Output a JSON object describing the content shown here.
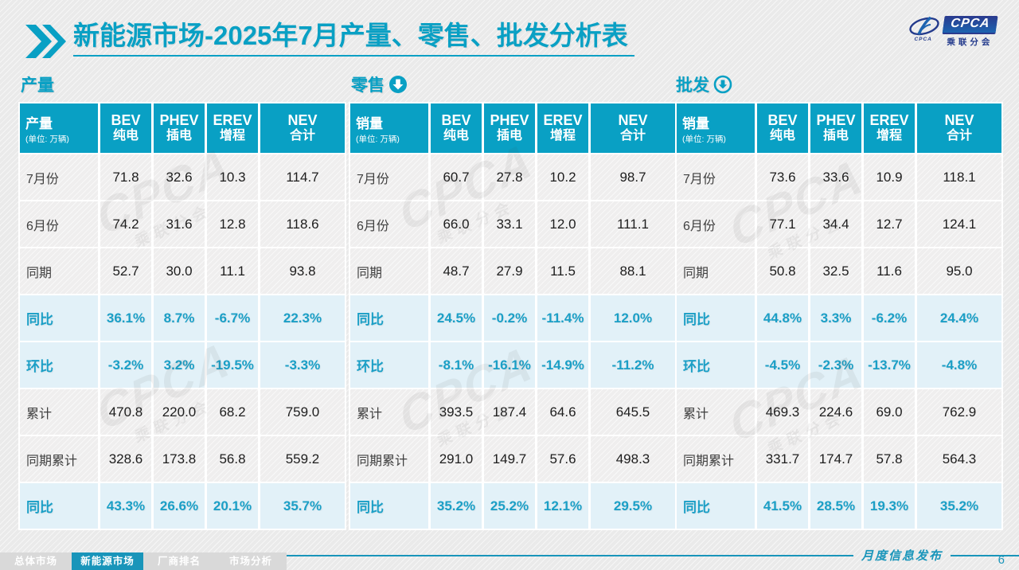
{
  "header": {
    "title_bold": "新能源市场",
    "title_rest": "-2025年7月产量、零售、批发分析表",
    "logo": {
      "name": "CPCA",
      "caption": "CPCA",
      "subtitle": "乘联分会"
    }
  },
  "colors": {
    "accent": "#09a0c4",
    "accent_text": "#1b9fc6",
    "row_highlight": "#e2f1f8",
    "row_gray": "#efeeee",
    "tab_active": "#1995ba",
    "tab_inactive": "#d9d9d9",
    "logo_navy": "#233a8c",
    "value_text": "#1d1d1d"
  },
  "watermark": {
    "line1": "CPCA",
    "line2": "乘联分会"
  },
  "chart_data": [
    {
      "type": "table",
      "name": "production",
      "section_label": "产量",
      "section_icon": "none",
      "corner_title": "产量",
      "corner_unit": "(单位: 万辆)",
      "columns": [
        [
          "BEV",
          "纯电"
        ],
        [
          "PHEV",
          "插电"
        ],
        [
          "EREV",
          "增程"
        ],
        [
          "NEV",
          "合计"
        ]
      ],
      "rows": [
        {
          "label": "7月份",
          "kind": "data",
          "cells": [
            "71.8",
            "32.6",
            "10.3",
            "114.7"
          ]
        },
        {
          "label": "6月份",
          "kind": "data",
          "cells": [
            "74.2",
            "31.6",
            "12.8",
            "118.6"
          ]
        },
        {
          "label": "同期",
          "kind": "data",
          "cells": [
            "52.7",
            "30.0",
            "11.1",
            "93.8"
          ]
        },
        {
          "label": "同比",
          "kind": "percent",
          "cells": [
            "36.1%",
            "8.7%",
            "-6.7%",
            "22.3%"
          ]
        },
        {
          "label": "环比",
          "kind": "percent",
          "cells": [
            "-3.2%",
            "3.2%",
            "-19.5%",
            "-3.3%"
          ]
        },
        {
          "label": "累计",
          "kind": "data",
          "cells": [
            "470.8",
            "220.0",
            "68.2",
            "759.0"
          ]
        },
        {
          "label": "同期累计",
          "kind": "data",
          "cells": [
            "328.6",
            "173.8",
            "56.8",
            "559.2"
          ]
        },
        {
          "label": "同比",
          "kind": "percent",
          "cells": [
            "43.3%",
            "26.6%",
            "20.1%",
            "35.7%"
          ]
        }
      ]
    },
    {
      "type": "table",
      "name": "retail",
      "section_label": "零售",
      "section_icon": "down-circle-filled",
      "corner_title": "销量",
      "corner_unit": "(单位: 万辆)",
      "columns": [
        [
          "BEV",
          "纯电"
        ],
        [
          "PHEV",
          "插电"
        ],
        [
          "EREV",
          "增程"
        ],
        [
          "NEV",
          "合计"
        ]
      ],
      "rows": [
        {
          "label": "7月份",
          "kind": "data",
          "cells": [
            "60.7",
            "27.8",
            "10.2",
            "98.7"
          ]
        },
        {
          "label": "6月份",
          "kind": "data",
          "cells": [
            "66.0",
            "33.1",
            "12.0",
            "111.1"
          ]
        },
        {
          "label": "同期",
          "kind": "data",
          "cells": [
            "48.7",
            "27.9",
            "11.5",
            "88.1"
          ]
        },
        {
          "label": "同比",
          "kind": "percent",
          "cells": [
            "24.5%",
            "-0.2%",
            "-11.4%",
            "12.0%"
          ]
        },
        {
          "label": "环比",
          "kind": "percent",
          "cells": [
            "-8.1%",
            "-16.1%",
            "-14.9%",
            "-11.2%"
          ]
        },
        {
          "label": "累计",
          "kind": "data",
          "cells": [
            "393.5",
            "187.4",
            "64.6",
            "645.5"
          ]
        },
        {
          "label": "同期累计",
          "kind": "data",
          "cells": [
            "291.0",
            "149.7",
            "57.6",
            "498.3"
          ]
        },
        {
          "label": "同比",
          "kind": "percent",
          "cells": [
            "35.2%",
            "25.2%",
            "12.1%",
            "29.5%"
          ]
        }
      ]
    },
    {
      "type": "table",
      "name": "wholesale",
      "section_label": "批发",
      "section_icon": "down-circle-outline",
      "corner_title": "销量",
      "corner_unit": "(单位: 万辆)",
      "columns": [
        [
          "BEV",
          "纯电"
        ],
        [
          "PHEV",
          "插电"
        ],
        [
          "EREV",
          "增程"
        ],
        [
          "NEV",
          "合计"
        ]
      ],
      "rows": [
        {
          "label": "7月份",
          "kind": "data",
          "cells": [
            "73.6",
            "33.6",
            "10.9",
            "118.1"
          ]
        },
        {
          "label": "6月份",
          "kind": "data",
          "cells": [
            "77.1",
            "34.4",
            "12.7",
            "124.1"
          ]
        },
        {
          "label": "同期",
          "kind": "data",
          "cells": [
            "50.8",
            "32.5",
            "11.6",
            "95.0"
          ]
        },
        {
          "label": "同比",
          "kind": "percent",
          "cells": [
            "44.8%",
            "3.3%",
            "-6.2%",
            "24.4%"
          ]
        },
        {
          "label": "环比",
          "kind": "percent",
          "cells": [
            "-4.5%",
            "-2.3%",
            "-13.7%",
            "-4.8%"
          ]
        },
        {
          "label": "累计",
          "kind": "data",
          "cells": [
            "469.3",
            "224.6",
            "69.0",
            "762.9"
          ]
        },
        {
          "label": "同期累计",
          "kind": "data",
          "cells": [
            "331.7",
            "174.7",
            "57.8",
            "564.3"
          ]
        },
        {
          "label": "同比",
          "kind": "percent",
          "cells": [
            "41.5%",
            "28.5%",
            "19.3%",
            "35.2%"
          ]
        }
      ]
    }
  ],
  "footer": {
    "publish_label": "月度信息发布",
    "page": "6",
    "tabs": [
      {
        "label": "总体市场",
        "name": "overall-market",
        "active": false
      },
      {
        "label": "新能源市场",
        "name": "nev-market",
        "active": true
      },
      {
        "label": "厂商排名",
        "name": "oem-ranking",
        "active": false
      },
      {
        "label": "市场分析",
        "name": "market-analysis",
        "active": false
      }
    ]
  }
}
